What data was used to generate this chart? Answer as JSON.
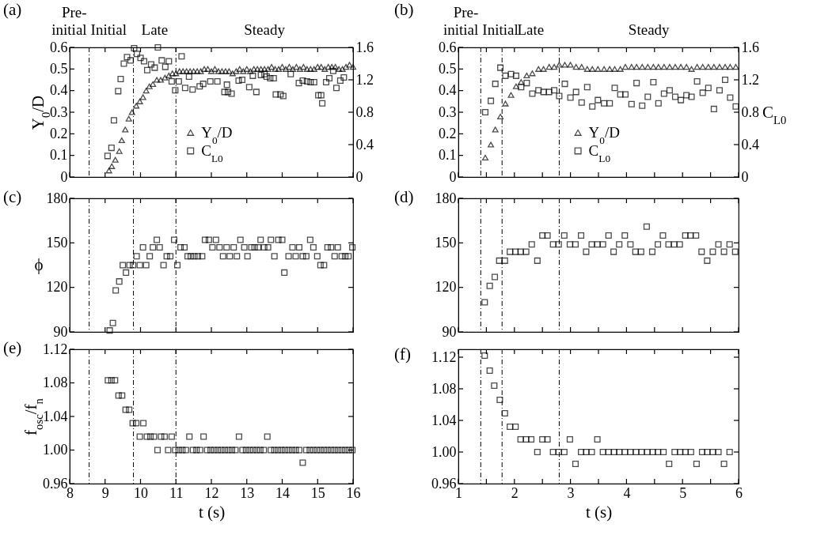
{
  "chart_data": [
    {
      "type": "scatter",
      "title": "(a)",
      "ylabel": "Y$_{0}$/D",
      "xlim": [
        8,
        16
      ],
      "xticks": [
        8,
        9,
        10,
        11,
        12,
        13,
        14,
        15,
        16
      ],
      "ylim": [
        0,
        0.6
      ],
      "yticks": [
        0,
        0.1,
        0.2,
        0.3,
        0.4,
        0.5,
        0.6
      ],
      "y2lim": [
        0,
        1.6
      ],
      "y2ticks": [
        0,
        0.4,
        0.8,
        1.2,
        1.6
      ],
      "tick_labels": "y",
      "legend": "bottom",
      "ref_lines": [
        {
          "axis": "x",
          "value": 8.55,
          "line_style": "dashed"
        },
        {
          "axis": "x",
          "value": 9.8,
          "line_style": "dashed"
        },
        {
          "axis": "x",
          "value": 11.0,
          "line_style": "dashed"
        }
      ],
      "annotations": [
        "Pre-\ninitial",
        "Initial",
        "Late",
        "Steady"
      ],
      "series": [
        {
          "name": "Y$_{0}$/D",
          "color": "#000000",
          "marker": "triangle",
          "x": [
            9.11,
            9.19,
            9.29,
            9.4,
            9.47,
            9.57,
            9.67,
            9.76,
            9.88,
            9.98,
            10.07,
            10.16,
            10.25,
            10.35,
            10.46,
            10.57,
            10.69,
            10.8,
            10.9,
            11.0,
            11.1,
            11.2,
            11.3,
            11.4,
            11.5,
            11.6,
            11.7,
            11.8,
            11.9,
            12.0,
            12.1,
            12.2,
            12.3,
            12.4,
            12.5,
            12.6,
            12.7,
            12.8,
            12.9,
            13.0,
            13.1,
            13.2,
            13.3,
            13.4,
            13.5,
            13.6,
            13.7,
            13.8,
            13.9,
            14.0,
            14.1,
            14.2,
            14.3,
            14.4,
            14.5,
            14.6,
            14.7,
            14.8,
            14.9,
            15.0,
            15.1,
            15.2,
            15.3,
            15.4,
            15.5,
            15.6,
            15.7,
            15.8,
            15.9,
            16.0
          ],
          "values": [
            0.03,
            0.05,
            0.08,
            0.12,
            0.17,
            0.22,
            0.27,
            0.3,
            0.33,
            0.35,
            0.37,
            0.4,
            0.42,
            0.43,
            0.45,
            0.45,
            0.46,
            0.47,
            0.48,
            0.48,
            0.49,
            0.49,
            0.49,
            0.49,
            0.49,
            0.49,
            0.49,
            0.5,
            0.5,
            0.49,
            0.5,
            0.49,
            0.49,
            0.49,
            0.49,
            0.48,
            0.49,
            0.5,
            0.49,
            0.5,
            0.49,
            0.5,
            0.5,
            0.5,
            0.5,
            0.5,
            0.51,
            0.5,
            0.5,
            0.51,
            0.5,
            0.51,
            0.5,
            0.51,
            0.5,
            0.51,
            0.5,
            0.5,
            0.5,
            0.51,
            0.51,
            0.5,
            0.51,
            0.51,
            0.51,
            0.5,
            0.5,
            0.51,
            0.52,
            0.51
          ]
        },
        {
          "name": "C$_{L0}$",
          "color": "#000000",
          "marker": "square",
          "axis": "y2",
          "x": [
            9.07,
            9.18,
            9.25,
            9.37,
            9.44,
            9.53,
            9.62,
            9.72,
            9.82,
            9.9,
            10.0,
            10.1,
            10.19,
            10.3,
            10.4,
            10.49,
            10.6,
            10.7,
            10.8,
            10.88,
            10.98,
            11.08,
            11.16,
            11.26,
            11.37,
            11.47,
            11.67,
            11.77,
            11.97,
            12.17,
            12.37,
            12.44,
            12.47,
            12.57,
            12.77,
            12.87,
            13.07,
            13.17,
            13.27,
            13.4,
            13.5,
            13.56,
            13.66,
            13.76,
            13.82,
            13.95,
            14.03,
            14.24,
            14.47,
            14.58,
            14.7,
            14.8,
            14.9,
            15.02,
            15.1,
            15.13,
            15.24,
            15.33,
            15.44,
            15.53,
            15.64,
            15.74
          ],
          "values": [
            0.26,
            0.36,
            0.7,
            1.06,
            1.21,
            1.4,
            1.48,
            1.44,
            1.59,
            1.52,
            1.47,
            1.43,
            1.32,
            1.39,
            1.35,
            1.6,
            1.44,
            1.36,
            1.43,
            1.18,
            1.07,
            1.18,
            1.49,
            1.1,
            1.24,
            1.08,
            1.12,
            1.15,
            1.18,
            1.18,
            1.05,
            1.14,
            1.05,
            1.03,
            1.19,
            1.2,
            1.11,
            1.25,
            1.05,
            1.26,
            1.27,
            1.24,
            1.22,
            1.22,
            1.02,
            1.02,
            1.0,
            1.27,
            1.16,
            1.19,
            1.18,
            1.17,
            1.17,
            1.01,
            1.01,
            0.91,
            1.17,
            1.22,
            1.31,
            1.1,
            1.19,
            1.23
          ]
        }
      ]
    },
    {
      "type": "scatter",
      "title": "(b)",
      "y2label": "C$_{L0}$",
      "xlim": [
        1,
        6
      ],
      "xticks": [
        1,
        {
          "value": 1.5,
          "label": null
        },
        2,
        {
          "value": 2.5,
          "label": null
        },
        3,
        {
          "value": 3.5,
          "label": null
        },
        4,
        {
          "value": 4.5,
          "label": null
        },
        5,
        {
          "value": 5.5,
          "label": null
        },
        6
      ],
      "ylim": [
        0,
        0.6
      ],
      "yticks": [
        0,
        0.1,
        0.2,
        0.3,
        0.4,
        0.5,
        0.6
      ],
      "y2lim": [
        0,
        1.6
      ],
      "y2ticks": [
        0,
        0.4,
        0.8,
        1.2,
        1.6
      ],
      "tick_labels": "y",
      "legend": "bottom",
      "ref_lines": [
        {
          "axis": "x",
          "value": 1.4,
          "line_style": "dashed"
        },
        {
          "axis": "x",
          "value": 1.78,
          "line_style": "dashed"
        },
        {
          "axis": "x",
          "value": 2.8,
          "line_style": "dashed"
        }
      ],
      "annotations": [
        "Pre-\ninitial",
        "Initial",
        "Late",
        "Steady"
      ],
      "x": [
        1.48,
        1.58,
        1.66,
        1.75,
        1.84,
        1.94,
        2.03,
        2.12,
        2.22,
        2.32,
        2.43,
        2.52,
        2.62,
        2.71,
        2.8,
        2.9,
        3.0,
        3.1,
        3.2,
        3.3,
        3.39,
        3.49,
        3.6,
        3.7,
        3.79,
        3.89,
        3.98,
        4.09,
        4.18,
        4.28,
        4.38,
        4.48,
        4.57,
        4.67,
        4.77,
        4.87,
        4.97,
        5.07,
        5.16,
        5.26,
        5.36,
        5.46,
        5.56,
        5.66,
        5.76,
        5.85,
        5.95
      ],
      "series": [
        {
          "name": "Y$_{0}$/D",
          "color": "#000000",
          "marker": "triangle",
          "values": [
            0.09,
            0.15,
            0.22,
            0.28,
            0.34,
            0.38,
            0.42,
            0.44,
            0.47,
            0.48,
            0.5,
            0.5,
            0.51,
            0.51,
            0.52,
            0.52,
            0.52,
            0.51,
            0.51,
            0.5,
            0.5,
            0.5,
            0.5,
            0.5,
            0.5,
            0.5,
            0.51,
            0.51,
            0.51,
            0.51,
            0.51,
            0.51,
            0.51,
            0.51,
            0.51,
            0.51,
            0.51,
            0.51,
            0.5,
            0.51,
            0.51,
            0.51,
            0.51,
            0.51,
            0.51,
            0.51,
            0.51
          ]
        },
        {
          "name": "C$_{L0}$",
          "color": "#000000",
          "marker": "square",
          "axis": "y2",
          "values": [
            0.8,
            0.94,
            1.15,
            1.35,
            1.25,
            1.27,
            1.25,
            1.11,
            1.16,
            1.03,
            1.07,
            1.05,
            1.05,
            1.07,
            1.0,
            1.15,
            0.98,
            1.05,
            0.92,
            1.11,
            0.87,
            0.95,
            0.91,
            0.91,
            1.1,
            1.02,
            1.02,
            0.9,
            1.16,
            0.88,
            0.99,
            1.17,
            0.91,
            1.03,
            1.07,
            0.99,
            0.95,
            1.01,
            0.99,
            1.18,
            1.04,
            1.1,
            0.84,
            1.07,
            1.2,
            0.98,
            0.87
          ]
        }
      ]
    },
    {
      "type": "scatter",
      "title": "(c)",
      "ylabel": "ϕ",
      "xlim": [
        8,
        16
      ],
      "xticks": [
        8,
        9,
        10,
        11,
        12,
        13,
        14,
        15,
        16
      ],
      "ylim": [
        90,
        180
      ],
      "yticks": [
        90,
        120,
        150,
        180
      ],
      "tick_labels": "y",
      "ref_lines": [
        {
          "axis": "x",
          "value": 8.55,
          "line_style": "dashed"
        },
        {
          "axis": "x",
          "value": 9.8,
          "line_style": "dashed"
        },
        {
          "axis": "x",
          "value": 11.0,
          "line_style": "dashed"
        }
      ],
      "series": [
        {
          "color": "#000000",
          "marker": "square",
          "x": [
            9.13,
            9.22,
            9.3,
            9.4,
            9.5,
            9.59,
            9.69,
            9.79,
            9.89,
            9.98,
            10.07,
            10.16,
            10.26,
            10.35,
            10.46,
            10.54,
            10.65,
            10.74,
            10.84,
            10.95,
            11.04,
            11.13,
            11.24,
            11.33,
            11.42,
            11.52,
            11.62,
            11.74,
            11.82,
            11.93,
            12.03,
            12.13,
            12.23,
            12.33,
            12.43,
            12.52,
            12.63,
            12.72,
            12.82,
            12.93,
            13.02,
            13.13,
            13.22,
            13.32,
            13.39,
            13.49,
            13.6,
            13.68,
            13.78,
            13.89,
            14.0,
            14.06,
            14.18,
            14.29,
            14.38,
            14.48,
            14.58,
            14.68,
            14.79,
            14.88,
            14.99,
            15.08,
            15.18,
            15.28,
            15.38,
            15.48,
            15.57,
            15.68,
            15.78,
            15.87,
            15.98
          ],
          "values": [
            91,
            96,
            118,
            124,
            135,
            130,
            135,
            135,
            141,
            135,
            147,
            135,
            141,
            147,
            152,
            147,
            135,
            141,
            141,
            152,
            135,
            147,
            147,
            141,
            141,
            141,
            141,
            141,
            152,
            152,
            147,
            152,
            147,
            141,
            147,
            141,
            147,
            141,
            152,
            147,
            141,
            147,
            147,
            147,
            152,
            147,
            147,
            152,
            141,
            152,
            152,
            130,
            141,
            147,
            141,
            147,
            141,
            141,
            152,
            147,
            141,
            135,
            135,
            147,
            147,
            141,
            147,
            141,
            141,
            141,
            147
          ]
        }
      ]
    },
    {
      "type": "scatter",
      "title": "(d)",
      "xlim": [
        1,
        6
      ],
      "xticks": [
        1,
        {
          "value": 1.5,
          "label": null
        },
        2,
        {
          "value": 2.5,
          "label": null
        },
        3,
        {
          "value": 3.5,
          "label": null
        },
        4,
        {
          "value": 4.5,
          "label": null
        },
        5,
        {
          "value": 5.5,
          "label": null
        },
        6
      ],
      "ylim": [
        90,
        180
      ],
      "yticks": [
        90,
        120,
        150,
        180
      ],
      "tick_labels": "y",
      "ref_lines": [
        {
          "axis": "x",
          "value": 1.4,
          "line_style": "dashed"
        },
        {
          "axis": "x",
          "value": 1.78,
          "line_style": "dashed"
        },
        {
          "axis": "x",
          "value": 2.8,
          "line_style": "dashed"
        }
      ],
      "series": [
        {
          "color": "#000000",
          "marker": "square",
          "x": [
            1.47,
            1.56,
            1.65,
            1.73,
            1.83,
            1.92,
            2.02,
            2.11,
            2.21,
            2.31,
            2.41,
            2.5,
            2.59,
            2.69,
            2.79,
            2.89,
            2.99,
            3.09,
            3.19,
            3.28,
            3.38,
            3.48,
            3.58,
            3.68,
            3.77,
            3.87,
            3.97,
            4.07,
            4.16,
            4.26,
            4.36,
            4.46,
            4.56,
            4.65,
            4.75,
            4.85,
            4.95,
            5.05,
            5.14,
            5.24,
            5.34,
            5.44,
            5.54,
            5.64,
            5.74,
            5.84,
            5.94
          ],
          "values": [
            110,
            121,
            127,
            138,
            138,
            144,
            144,
            144,
            144,
            149,
            138,
            155,
            155,
            149,
            149,
            155,
            149,
            149,
            155,
            144,
            149,
            149,
            149,
            155,
            144,
            149,
            155,
            149,
            144,
            144,
            161,
            144,
            149,
            155,
            149,
            149,
            149,
            155,
            155,
            155,
            144,
            138,
            144,
            149,
            144,
            149,
            144
          ]
        }
      ]
    },
    {
      "type": "scatter",
      "title": "(e)",
      "xlabel": "t (s)",
      "ylabel": "f$_{osc}$/f$_{n}$",
      "xlim": [
        8,
        16
      ],
      "xticks": [
        8,
        9,
        10,
        11,
        12,
        13,
        14,
        15,
        16
      ],
      "ylim": [
        0.96,
        1.12
      ],
      "yticks": [
        0.96,
        {
          "value": 1,
          "label": "1.00"
        },
        1.04,
        1.08,
        1.12
      ],
      "ref_lines": [
        {
          "axis": "x",
          "value": 8.55,
          "line_style": "dashed"
        },
        {
          "axis": "x",
          "value": 9.8,
          "line_style": "dashed"
        },
        {
          "axis": "x",
          "value": 11.0,
          "line_style": "dashed"
        }
      ],
      "series": [
        {
          "color": "#000000",
          "marker": "square",
          "x": [
            9.08,
            9.18,
            9.28,
            9.38,
            9.48,
            9.58,
            9.68,
            9.78,
            9.88,
            9.98,
            10.08,
            10.18,
            10.28,
            10.38,
            10.48,
            10.58,
            10.68,
            10.78,
            10.88,
            10.98,
            11.08,
            11.18,
            11.28,
            11.38,
            11.48,
            11.58,
            11.68,
            11.78,
            11.88,
            11.98,
            12.08,
            12.18,
            12.28,
            12.38,
            12.48,
            12.58,
            12.68,
            12.78,
            12.88,
            12.98,
            13.08,
            13.18,
            13.28,
            13.38,
            13.48,
            13.58,
            13.68,
            13.78,
            13.88,
            13.98,
            14.08,
            14.18,
            14.28,
            14.38,
            14.48,
            14.58,
            14.68,
            14.78,
            14.88,
            14.98,
            15.08,
            15.18,
            15.28,
            15.38,
            15.48,
            15.58,
            15.68,
            15.78,
            15.88,
            15.98
          ],
          "values": [
            1.083,
            1.083,
            1.083,
            1.065,
            1.065,
            1.048,
            1.048,
            1.032,
            1.032,
            1.016,
            1.032,
            1.016,
            1.016,
            1.016,
            1,
            1.016,
            1.016,
            1,
            1.016,
            1,
            1,
            1,
            1,
            1.016,
            1,
            1,
            1,
            1.016,
            1,
            1,
            1,
            1,
            1,
            1,
            1,
            1,
            1,
            1.016,
            1,
            1,
            1,
            1,
            1,
            1,
            1,
            1.016,
            1,
            1,
            1,
            1,
            1,
            1,
            1,
            1,
            1,
            0.985,
            1,
            1,
            1,
            1,
            1,
            1,
            1,
            1,
            1,
            1,
            1,
            1,
            1,
            1
          ]
        }
      ]
    },
    {
      "type": "scatter",
      "title": "(f)",
      "xlabel": "t (s)",
      "xlim": [
        1,
        6
      ],
      "xticks": [
        1,
        {
          "value": 1.5,
          "label": null
        },
        2,
        {
          "value": 2.5,
          "label": null
        },
        3,
        {
          "value": 3.5,
          "label": null
        },
        4,
        {
          "value": 4.5,
          "label": null
        },
        5,
        {
          "value": 5.5,
          "label": null
        },
        6
      ],
      "ylim": [
        0.96,
        1.13
      ],
      "yticks": [
        0.96,
        {
          "value": 1,
          "label": "1.00"
        },
        1.04,
        1.08,
        1.12
      ],
      "ref_lines": [
        {
          "axis": "x",
          "value": 1.4,
          "line_style": "dashed"
        },
        {
          "axis": "x",
          "value": 1.78,
          "line_style": "dashed"
        },
        {
          "axis": "x",
          "value": 2.8,
          "line_style": "dashed"
        }
      ],
      "series": [
        {
          "color": "#000000",
          "marker": "square",
          "x": [
            1.47,
            1.56,
            1.64,
            1.74,
            1.83,
            1.92,
            2.02,
            2.11,
            2.21,
            2.3,
            2.41,
            2.5,
            2.59,
            2.69,
            2.79,
            2.89,
            2.99,
            3.09,
            3.19,
            3.28,
            3.38,
            3.48,
            3.58,
            3.68,
            3.78,
            3.87,
            3.97,
            4.07,
            4.17,
            4.27,
            4.37,
            4.47,
            4.56,
            4.66,
            4.76,
            4.86,
            4.96,
            5.05,
            5.15,
            5.25,
            5.35,
            5.44,
            5.54,
            5.64,
            5.74,
            5.84
          ],
          "values": [
            1.122,
            1.103,
            1.084,
            1.066,
            1.049,
            1.032,
            1.032,
            1.016,
            1.016,
            1.016,
            1,
            1.016,
            1.016,
            1,
            1,
            1,
            1.016,
            0.985,
            1,
            1,
            1,
            1.016,
            1,
            1,
            1,
            1,
            1,
            1,
            1,
            1,
            1,
            1,
            1,
            1,
            0.985,
            1,
            1,
            1,
            1,
            0.985,
            1,
            1,
            1,
            1,
            0.985,
            1
          ]
        }
      ]
    }
  ]
}
